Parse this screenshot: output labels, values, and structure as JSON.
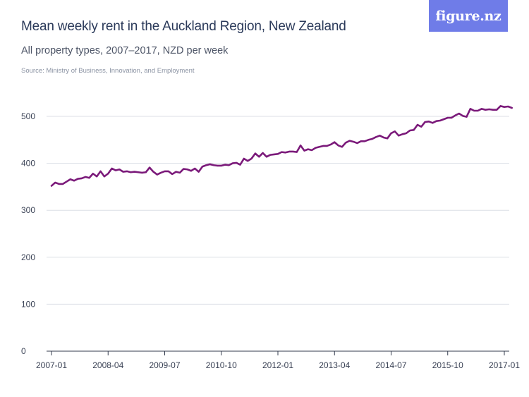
{
  "header": {
    "title": "Mean weekly rent in the Auckland Region, New Zealand",
    "subtitle": "All property types, 2007–2017, NZD per week",
    "source": "Source: Ministry of Business, Innovation, and Employment",
    "logo_text": "figure.nz"
  },
  "colors": {
    "line": "#7b1a7a",
    "grid": "#dcdfe6",
    "axis": "#333b4d",
    "logo_bg": "#6f7ce8"
  },
  "chart_data": {
    "type": "line",
    "title": "Mean weekly rent in the Auckland Region, New Zealand",
    "subtitle": "All property types, 2007–2017, NZD per week",
    "xlabel": "",
    "ylabel": "",
    "ylim": [
      0,
      540
    ],
    "yticks": [
      0,
      100,
      200,
      300,
      400,
      500
    ],
    "ytick_labels": [
      "0",
      "100",
      "200",
      "300",
      "400",
      "500"
    ],
    "xticks": [
      "2007-01",
      "2008-04",
      "2009-07",
      "2010-10",
      "2012-01",
      "2013-04",
      "2014-07",
      "2015-10",
      "2017-01"
    ],
    "grid": true,
    "legend": "none",
    "series": [
      {
        "start": "2007-01",
        "frequency": "monthly",
        "values": [
          352,
          359,
          356,
          356,
          361,
          366,
          363,
          367,
          368,
          371,
          369,
          378,
          372,
          383,
          372,
          378,
          389,
          385,
          387,
          382,
          383,
          381,
          382,
          381,
          380,
          381,
          391,
          382,
          376,
          380,
          383,
          383,
          377,
          382,
          380,
          388,
          387,
          384,
          389,
          382,
          393,
          396,
          398,
          396,
          395,
          395,
          397,
          396,
          400,
          401,
          397,
          410,
          405,
          410,
          421,
          414,
          422,
          414,
          418,
          419,
          420,
          424,
          423,
          425,
          425,
          424,
          438,
          427,
          430,
          428,
          433,
          435,
          437,
          437,
          440,
          445,
          438,
          435,
          444,
          448,
          446,
          443,
          447,
          447,
          450,
          452,
          456,
          459,
          455,
          453,
          464,
          468,
          459,
          462,
          464,
          470,
          471,
          482,
          478,
          488,
          489,
          486,
          490,
          491,
          494,
          497,
          497,
          502,
          506,
          501,
          499,
          516,
          512,
          512,
          516,
          514,
          515,
          514,
          514,
          522,
          520,
          521,
          518
        ]
      }
    ]
  }
}
